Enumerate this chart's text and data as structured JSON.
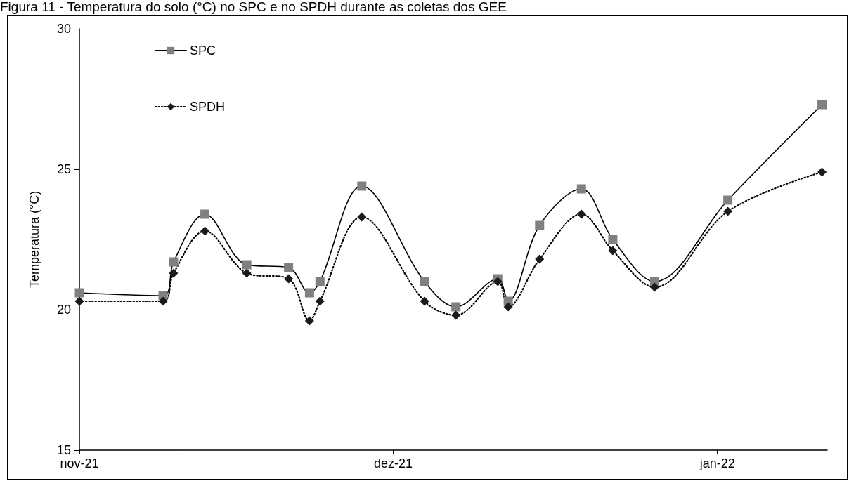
{
  "chart_data": {
    "type": "line",
    "title": "Figura 11 - Temperatura do solo (°C) no SPC e no SPDH durante as coletas dos GEE",
    "ylabel": "Temperatura (°C)",
    "x": [
      "2021-11-01",
      "2021-11-09",
      "2021-11-10",
      "2021-11-13",
      "2021-11-17",
      "2021-11-21",
      "2021-11-23",
      "2021-11-24",
      "2021-11-28",
      "2021-12-04",
      "2021-12-07",
      "2021-12-11",
      "2021-12-12",
      "2021-12-15",
      "2021-12-19",
      "2021-12-22",
      "2021-12-26",
      "2022-01-02",
      "2022-01-11"
    ],
    "series": [
      {
        "name": "SPC",
        "color": "#808080",
        "marker": "square",
        "line_style": "solid",
        "values": [
          20.6,
          20.5,
          21.7,
          23.4,
          21.6,
          21.5,
          20.6,
          21.0,
          24.4,
          21.0,
          20.1,
          21.1,
          20.3,
          23.0,
          24.3,
          22.5,
          21.0,
          23.9,
          27.3
        ]
      },
      {
        "name": "SPDH",
        "color": "#1a1a1a",
        "marker": "diamond",
        "line_style": "dotted",
        "values": [
          20.3,
          20.3,
          21.3,
          22.8,
          21.3,
          21.1,
          19.6,
          20.3,
          23.3,
          20.3,
          19.8,
          21.0,
          20.1,
          21.8,
          23.4,
          22.1,
          20.8,
          23.5,
          24.9
        ]
      }
    ],
    "xlim": [
      "2021-11-01",
      "2022-01-11T12:00"
    ],
    "xticks": [
      {
        "value": "2021-11-01",
        "label": "nov-21"
      },
      {
        "value": "2021-12-01",
        "label": "dez-21"
      },
      {
        "value": "2022-01-01",
        "label": "jan-22"
      }
    ],
    "ylim": [
      15,
      30
    ],
    "yticks": [
      15,
      20,
      25,
      30
    ],
    "grid": false,
    "legend": "top left"
  }
}
